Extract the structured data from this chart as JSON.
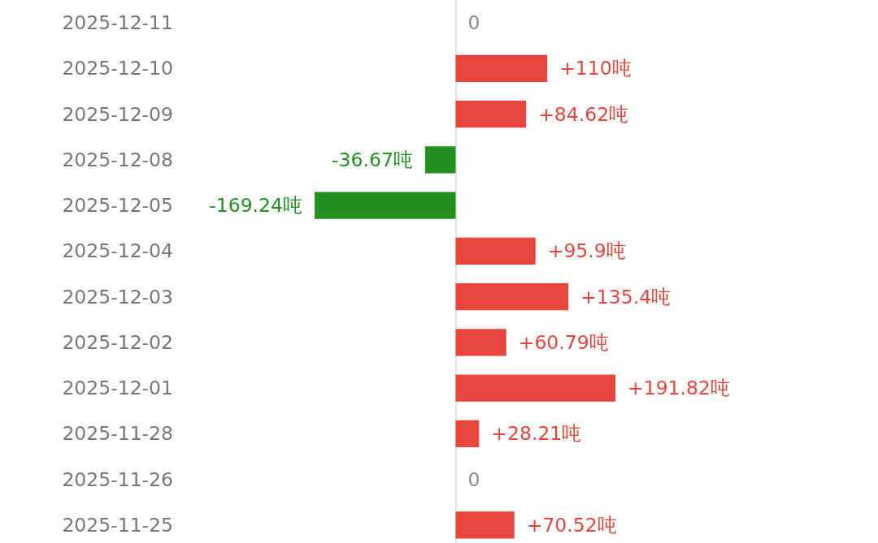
{
  "chart_data": {
    "type": "bar",
    "orientation": "horizontal",
    "categories": [
      "2025-12-11",
      "2025-12-10",
      "2025-12-09",
      "2025-12-08",
      "2025-12-05",
      "2025-12-04",
      "2025-12-03",
      "2025-12-02",
      "2025-12-01",
      "2025-11-28",
      "2025-11-26",
      "2025-11-25"
    ],
    "values": [
      0,
      110,
      84.62,
      -36.67,
      -169.24,
      95.9,
      135.4,
      60.79,
      191.82,
      28.21,
      0,
      70.52
    ],
    "colors": [
      "#8a8a8a",
      "#e8453c",
      "#e8453c",
      "#23901f",
      "#23901f",
      "#e8453c",
      "#e8453c",
      "#e8453c",
      "#e8453c",
      "#e8453c",
      "#8a8a8a",
      "#e8453c"
    ],
    "value_labels": [
      "0",
      "+110吨",
      "+84.62吨",
      "-36.67吨",
      "-169.24吨",
      "+95.9吨",
      "+135.4吨",
      "+60.79吨",
      "+191.82吨",
      "+28.21吨",
      "0",
      "+70.52吨"
    ]
  }
}
